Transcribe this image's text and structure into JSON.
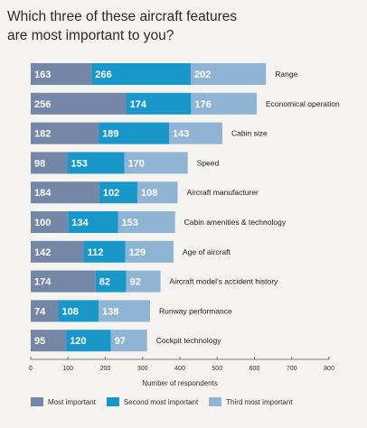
{
  "title": "Which three of these aircraft features\nare most important to you?",
  "chart_data": {
    "type": "bar",
    "orientation": "horizontal",
    "stacked": true,
    "categories": [
      "Range",
      "Economical operation",
      "Cabin size",
      "Speed",
      "Aircraft manufacturer",
      "Cabin amenities & technology",
      "Age of aircraft",
      "Aircraft  model's accident history",
      "Runway performance",
      "Cockpit technology"
    ],
    "series": [
      {
        "name": "Most important",
        "color": "#7587a6",
        "values": [
          163,
          256,
          182,
          98,
          184,
          100,
          142,
          174,
          74,
          95
        ]
      },
      {
        "name": "Second most important",
        "color": "#1997c9",
        "values": [
          266,
          174,
          189,
          153,
          102,
          134,
          112,
          82,
          108,
          120
        ]
      },
      {
        "name": "Third most important",
        "color": "#8fb4d4",
        "values": [
          202,
          176,
          143,
          170,
          108,
          153,
          129,
          92,
          138,
          97
        ]
      }
    ],
    "xlim": [
      0,
      800
    ],
    "xticks": [
      0,
      100,
      200,
      300,
      400,
      500,
      600,
      700,
      800
    ],
    "xlabel": "Number of respondents",
    "ylabel": "",
    "grid": false,
    "legend_position": "bottom"
  }
}
